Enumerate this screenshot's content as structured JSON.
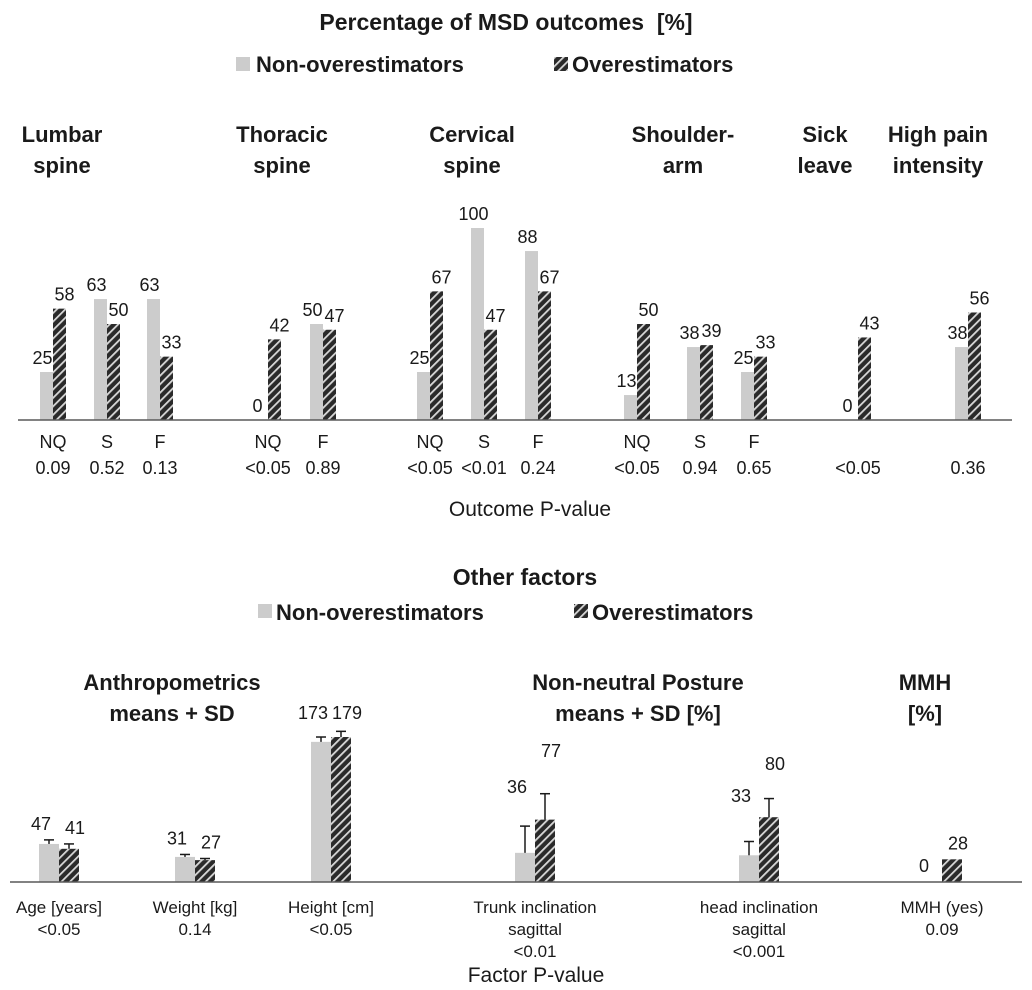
{
  "colors": {
    "non": "#cccccc",
    "over_fill": "#2a2a2a",
    "over_stripe": "#d8d8d8",
    "axis": "#595959",
    "text": "#1a1a1a"
  },
  "chart_data": [
    {
      "type": "bar",
      "title": "Percentage of MSD outcomes  [%]",
      "legend": [
        "Non-overestimators",
        "Overestimators"
      ],
      "legend_placement": "top",
      "xlabel": "Outcome P-value",
      "ylim": [
        0,
        100
      ],
      "groups": [
        {
          "title_lines": [
            "Lumbar",
            "spine"
          ],
          "categories": [
            {
              "label": "NQ",
              "p": "0.09",
              "non": 25,
              "over": 58
            },
            {
              "label": "S",
              "p": "0.52",
              "non": 63,
              "over": 50
            },
            {
              "label": "F",
              "p": "0.13",
              "non": 63,
              "over": 33
            }
          ]
        },
        {
          "title_lines": [
            "Thoracic",
            "spine"
          ],
          "categories": [
            {
              "label": "NQ",
              "p": "<0.05",
              "non": 0,
              "over": 42
            },
            {
              "label": "F",
              "p": "0.89",
              "non": 50,
              "over": 47
            }
          ]
        },
        {
          "title_lines": [
            "Cervical",
            "spine"
          ],
          "categories": [
            {
              "label": "NQ",
              "p": "<0.05",
              "non": 25,
              "over": 67
            },
            {
              "label": "S",
              "p": "<0.01",
              "non": 100,
              "over": 47
            },
            {
              "label": "F",
              "p": "0.24",
              "non": 88,
              "over": 67
            }
          ]
        },
        {
          "title_lines": [
            "Shoulder-",
            "arm"
          ],
          "categories": [
            {
              "label": "NQ",
              "p": "<0.05",
              "non": 13,
              "over": 50
            },
            {
              "label": "S",
              "p": "0.94",
              "non": 38,
              "over": 39
            },
            {
              "label": "F",
              "p": "0.65",
              "non": 25,
              "over": 33
            }
          ]
        },
        {
          "title_lines": [
            "Sick",
            "leave"
          ],
          "categories": [
            {
              "label": "",
              "p": "<0.05",
              "non": 0,
              "over": 43
            }
          ]
        },
        {
          "title_lines": [
            "High pain",
            "intensity"
          ],
          "categories": [
            {
              "label": "",
              "p": "0.36",
              "non": 38,
              "over": 56
            }
          ]
        }
      ]
    },
    {
      "type": "bar",
      "title": "Other factors",
      "legend": [
        "Non-overestimators",
        "Overestimators"
      ],
      "legend_placement": "top",
      "xlabel": "Factor P-value",
      "error_bars": "SD",
      "groups": [
        {
          "title_lines": [
            "Anthropometrics",
            "means + SD"
          ],
          "categories": [
            {
              "label_lines": [
                "Age [years]"
              ],
              "p": "<0.05",
              "non": 47,
              "over": 41,
              "non_sd": 5,
              "over_sd": 6
            },
            {
              "label_lines": [
                "Weight [kg]"
              ],
              "p": "0.14",
              "non": 31,
              "over": 27,
              "non_sd": 3,
              "over_sd": 2
            },
            {
              "label_lines": [
                "Height [cm]"
              ],
              "p": "<0.05",
              "non": 173,
              "over": 179,
              "non_sd": 6,
              "over_sd": 7
            }
          ]
        },
        {
          "title_lines": [
            "Non-neutral Posture",
            "means + SD [%]"
          ],
          "categories": [
            {
              "label_lines": [
                "Trunk inclination",
                "sagittal"
              ],
              "p": "<0.01",
              "non": 36,
              "over": 77,
              "non_sd": 33,
              "over_sd": 32
            },
            {
              "label_lines": [
                "head inclination",
                "sagittal"
              ],
              "p": "<0.001",
              "non": 33,
              "over": 80,
              "non_sd": 17,
              "over_sd": 23
            }
          ]
        },
        {
          "title_lines": [
            "MMH",
            "[%]"
          ],
          "categories": [
            {
              "label_lines": [
                "MMH (yes)"
              ],
              "p": "0.09",
              "non": 0,
              "over": 28,
              "non_sd": 0,
              "over_sd": 0
            }
          ]
        }
      ]
    }
  ]
}
